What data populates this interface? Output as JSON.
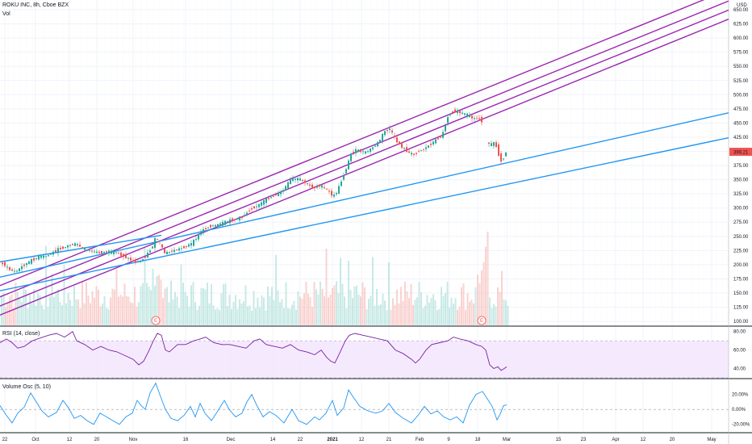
{
  "header": {
    "symbol": "ROKU INC, 8h, Cboe BZX",
    "volume_label": "Vol",
    "rsi_label": "RSI (14, close)",
    "vosc_label": "Volume Osc (5, 10)",
    "currency": "USD"
  },
  "chart_data": {
    "type": "candlestick",
    "price_axis": {
      "ticks": [
        "650.00",
        "625.00",
        "600.00",
        "575.00",
        "550.00",
        "525.00",
        "500.00",
        "475.00",
        "450.00",
        "425.00",
        "400.00",
        "375.00",
        "350.00",
        "325.00",
        "300.00",
        "275.00",
        "250.00",
        "225.00",
        "200.00",
        "175.00",
        "150.00",
        "125.00",
        "100.00"
      ],
      "range": [
        93,
        660
      ],
      "last_price": "399.21"
    },
    "rsi_axis": {
      "ticks": [
        "80.00",
        "60.00",
        "40.00"
      ],
      "range": [
        30,
        85
      ],
      "band": [
        30,
        70
      ]
    },
    "vosc_axis": {
      "ticks": [
        "20.00%",
        "0.00%",
        "-20.00%"
      ],
      "range": [
        -30,
        40
      ]
    },
    "time_axis": [
      "22",
      "Oct",
      "12",
      "20",
      "Nov",
      "16",
      "Dec",
      "14",
      "22",
      "2021",
      "12",
      "21",
      "Feb",
      "9",
      "18",
      "Mar",
      "15",
      "23",
      "Apr",
      "12",
      "20",
      "May"
    ],
    "earnings_markers": [
      "E",
      "E"
    ],
    "colors": {
      "up": "#26a69a",
      "down": "#ef5350",
      "channel": "#9c27b0",
      "trend": "#2196f3",
      "rsi": "#7b1fa2",
      "vosc": "#2196f3",
      "price_tag": "#ef5350"
    },
    "price_path": [
      [
        0,
        198
      ],
      [
        5,
        203
      ],
      [
        10,
        196
      ],
      [
        15,
        190
      ],
      [
        22,
        188
      ],
      [
        30,
        198
      ],
      [
        40,
        207
      ],
      [
        50,
        214
      ],
      [
        60,
        215
      ],
      [
        68,
        222
      ],
      [
        75,
        228
      ],
      [
        82,
        231
      ],
      [
        90,
        236
      ],
      [
        97,
        236
      ],
      [
        105,
        228
      ],
      [
        115,
        224
      ],
      [
        125,
        221
      ],
      [
        135,
        223
      ],
      [
        145,
        222
      ],
      [
        155,
        215
      ],
      [
        165,
        208
      ],
      [
        172,
        204
      ],
      [
        178,
        208
      ],
      [
        185,
        220
      ],
      [
        190,
        230
      ],
      [
        195,
        248
      ],
      [
        200,
        240
      ],
      [
        205,
        220
      ],
      [
        210,
        222
      ],
      [
        220,
        226
      ],
      [
        230,
        231
      ],
      [
        240,
        238
      ],
      [
        245,
        247
      ],
      [
        252,
        260
      ],
      [
        262,
        268
      ],
      [
        272,
        270
      ],
      [
        282,
        276
      ],
      [
        292,
        280
      ],
      [
        302,
        284
      ],
      [
        312,
        298
      ],
      [
        322,
        305
      ],
      [
        332,
        315
      ],
      [
        342,
        322
      ],
      [
        352,
        330
      ],
      [
        362,
        350
      ],
      [
        372,
        352
      ],
      [
        380,
        345
      ],
      [
        390,
        335
      ],
      [
        398,
        340
      ],
      [
        405,
        335
      ],
      [
        410,
        328
      ],
      [
        415,
        320
      ],
      [
        420,
        330
      ],
      [
        427,
        355
      ],
      [
        432,
        374
      ],
      [
        438,
        400
      ],
      [
        445,
        402
      ],
      [
        455,
        398
      ],
      [
        465,
        408
      ],
      [
        472,
        418
      ],
      [
        478,
        435
      ],
      [
        485,
        440
      ],
      [
        492,
        420
      ],
      [
        500,
        408
      ],
      [
        508,
        398
      ],
      [
        515,
        394
      ],
      [
        520,
        400
      ],
      [
        528,
        405
      ],
      [
        535,
        412
      ],
      [
        542,
        420
      ],
      [
        550,
        428
      ],
      [
        557,
        462
      ],
      [
        562,
        470
      ],
      [
        567,
        472
      ],
      [
        572,
        468
      ],
      [
        580,
        465
      ],
      [
        588,
        458
      ],
      [
        592,
        458
      ],
      [
        597,
        457
      ],
      [
        602,
        448
      ],
      [
        606,
        410
      ],
      [
        612,
        414
      ],
      [
        616,
        414
      ],
      [
        620,
        394
      ],
      [
        624,
        380
      ],
      [
        628,
        399
      ]
    ],
    "rsi_path": [
      [
        0,
        68
      ],
      [
        8,
        72
      ],
      [
        15,
        68
      ],
      [
        22,
        62
      ],
      [
        30,
        64
      ],
      [
        40,
        70
      ],
      [
        50,
        73
      ],
      [
        60,
        76
      ],
      [
        70,
        78
      ],
      [
        80,
        74
      ],
      [
        90,
        80
      ],
      [
        95,
        70
      ],
      [
        105,
        66
      ],
      [
        115,
        60
      ],
      [
        125,
        64
      ],
      [
        135,
        60
      ],
      [
        145,
        58
      ],
      [
        155,
        54
      ],
      [
        165,
        50
      ],
      [
        172,
        44
      ],
      [
        178,
        48
      ],
      [
        185,
        60
      ],
      [
        190,
        70
      ],
      [
        195,
        78
      ],
      [
        200,
        76
      ],
      [
        205,
        60
      ],
      [
        210,
        58
      ],
      [
        220,
        66
      ],
      [
        230,
        66
      ],
      [
        240,
        70
      ],
      [
        248,
        72
      ],
      [
        255,
        74
      ],
      [
        265,
        68
      ],
      [
        275,
        66
      ],
      [
        285,
        66
      ],
      [
        295,
        64
      ],
      [
        305,
        62
      ],
      [
        315,
        70
      ],
      [
        322,
        72
      ],
      [
        330,
        66
      ],
      [
        340,
        64
      ],
      [
        350,
        62
      ],
      [
        360,
        66
      ],
      [
        370,
        60
      ],
      [
        380,
        58
      ],
      [
        390,
        55
      ],
      [
        398,
        60
      ],
      [
        405,
        52
      ],
      [
        410,
        48
      ],
      [
        415,
        46
      ],
      [
        420,
        55
      ],
      [
        428,
        70
      ],
      [
        433,
        76
      ],
      [
        440,
        78
      ],
      [
        450,
        76
      ],
      [
        460,
        74
      ],
      [
        470,
        72
      ],
      [
        480,
        70
      ],
      [
        490,
        60
      ],
      [
        500,
        56
      ],
      [
        510,
        50
      ],
      [
        515,
        46
      ],
      [
        520,
        50
      ],
      [
        528,
        60
      ],
      [
        535,
        66
      ],
      [
        545,
        68
      ],
      [
        555,
        70
      ],
      [
        562,
        74
      ],
      [
        570,
        72
      ],
      [
        580,
        70
      ],
      [
        590,
        66
      ],
      [
        597,
        64
      ],
      [
        602,
        60
      ],
      [
        607,
        44
      ],
      [
        612,
        40
      ],
      [
        617,
        42
      ],
      [
        621,
        38
      ],
      [
        625,
        40
      ],
      [
        628,
        42
      ]
    ],
    "vosc_path": [
      [
        0,
        5
      ],
      [
        8,
        -8
      ],
      [
        15,
        -18
      ],
      [
        22,
        -5
      ],
      [
        30,
        3
      ],
      [
        38,
        22
      ],
      [
        45,
        10
      ],
      [
        52,
        -2
      ],
      [
        60,
        -10
      ],
      [
        70,
        -4
      ],
      [
        78,
        12
      ],
      [
        85,
        2
      ],
      [
        92,
        -12
      ],
      [
        100,
        -8
      ],
      [
        108,
        -15
      ],
      [
        116,
        -20
      ],
      [
        124,
        -5
      ],
      [
        132,
        -10
      ],
      [
        140,
        -15
      ],
      [
        148,
        -20
      ],
      [
        156,
        -10
      ],
      [
        164,
        -5
      ],
      [
        170,
        12
      ],
      [
        175,
        5
      ],
      [
        180,
        0
      ],
      [
        186,
        22
      ],
      [
        193,
        35
      ],
      [
        198,
        20
      ],
      [
        205,
        0
      ],
      [
        212,
        -12
      ],
      [
        220,
        -15
      ],
      [
        228,
        -8
      ],
      [
        236,
        4
      ],
      [
        242,
        -10
      ],
      [
        248,
        8
      ],
      [
        254,
        -5
      ],
      [
        262,
        -15
      ],
      [
        270,
        -2
      ],
      [
        278,
        12
      ],
      [
        284,
        0
      ],
      [
        292,
        -10
      ],
      [
        300,
        -5
      ],
      [
        306,
        10
      ],
      [
        312,
        20
      ],
      [
        318,
        6
      ],
      [
        326,
        -10
      ],
      [
        334,
        -3
      ],
      [
        342,
        -8
      ],
      [
        352,
        -18
      ],
      [
        362,
        0
      ],
      [
        370,
        -15
      ],
      [
        380,
        -20
      ],
      [
        390,
        -10
      ],
      [
        396,
        -14
      ],
      [
        404,
        -5
      ],
      [
        412,
        12
      ],
      [
        418,
        -8
      ],
      [
        426,
        2
      ],
      [
        432,
        26
      ],
      [
        438,
        16
      ],
      [
        446,
        4
      ],
      [
        456,
        -2
      ],
      [
        466,
        -5
      ],
      [
        474,
        -2
      ],
      [
        482,
        8
      ],
      [
        490,
        -4
      ],
      [
        500,
        -12
      ],
      [
        510,
        -18
      ],
      [
        518,
        -8
      ],
      [
        526,
        4
      ],
      [
        534,
        -6
      ],
      [
        542,
        -2
      ],
      [
        550,
        -10
      ],
      [
        558,
        -14
      ],
      [
        566,
        -10
      ],
      [
        574,
        -18
      ],
      [
        582,
        6
      ],
      [
        590,
        20
      ],
      [
        598,
        24
      ],
      [
        604,
        14
      ],
      [
        610,
        4
      ],
      [
        616,
        -14
      ],
      [
        620,
        -6
      ],
      [
        624,
        5
      ],
      [
        628,
        6
      ]
    ]
  }
}
